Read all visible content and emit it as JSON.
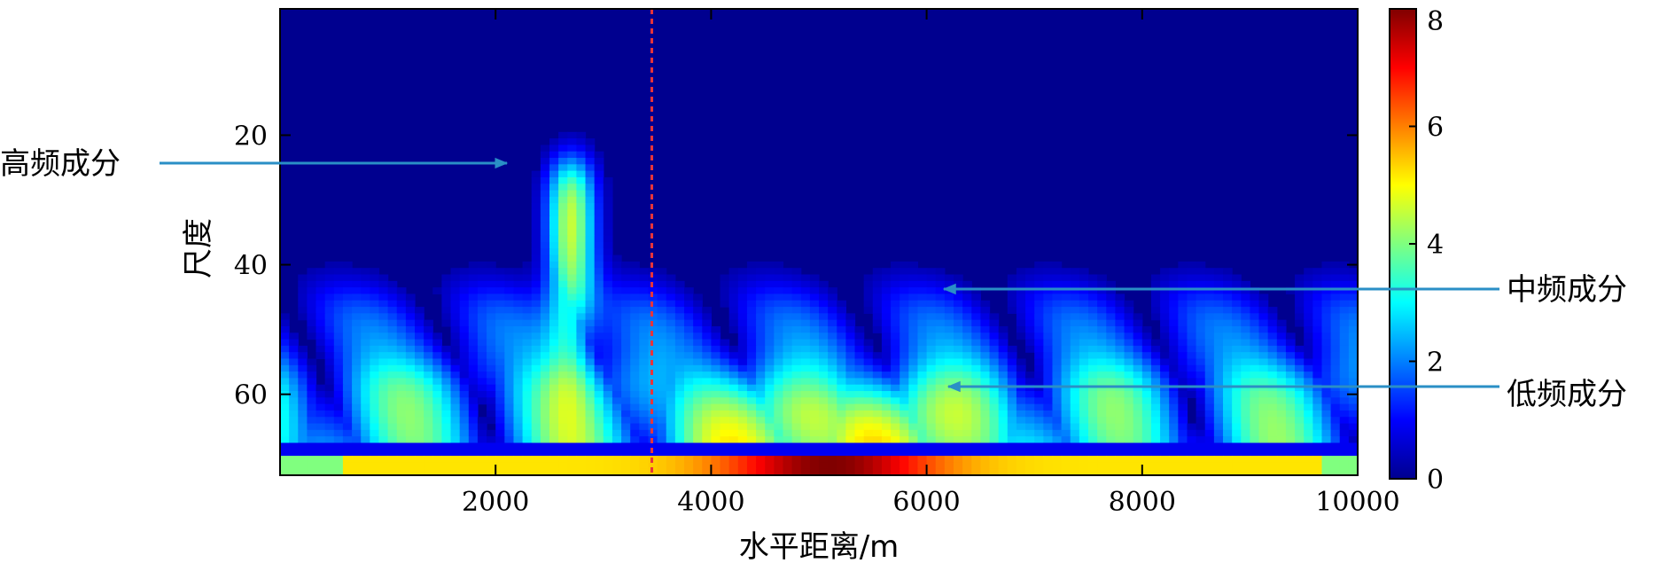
{
  "chart_data": {
    "type": "heatmap",
    "xlabel": "水平距离/m",
    "ylabel": "尺度",
    "xlim": [
      0,
      10000
    ],
    "ylim": [
      1,
      72
    ],
    "y_inverted": true,
    "x_ticks": [
      2000,
      4000,
      6000,
      8000,
      10000
    ],
    "y_ticks": [
      20,
      40,
      60
    ],
    "colorbar": {
      "min": 0,
      "max": 8,
      "ticks": [
        0,
        2,
        4,
        6,
        8
      ],
      "colormap": "jet"
    },
    "reference_line": {
      "x": 3450,
      "style": "dashed",
      "color": "#e8343a"
    },
    "annotations": [
      {
        "text": "高频成分",
        "x": 2100,
        "y": 24
      },
      {
        "text": "中频成分",
        "x": 6200,
        "y": 44
      },
      {
        "text": "低频成分",
        "x": 6200,
        "y": 60
      }
    ]
  },
  "colors": {
    "background_low": "#00008f",
    "arrow": "#2a8fc6",
    "reference_line": "#e8343a"
  }
}
